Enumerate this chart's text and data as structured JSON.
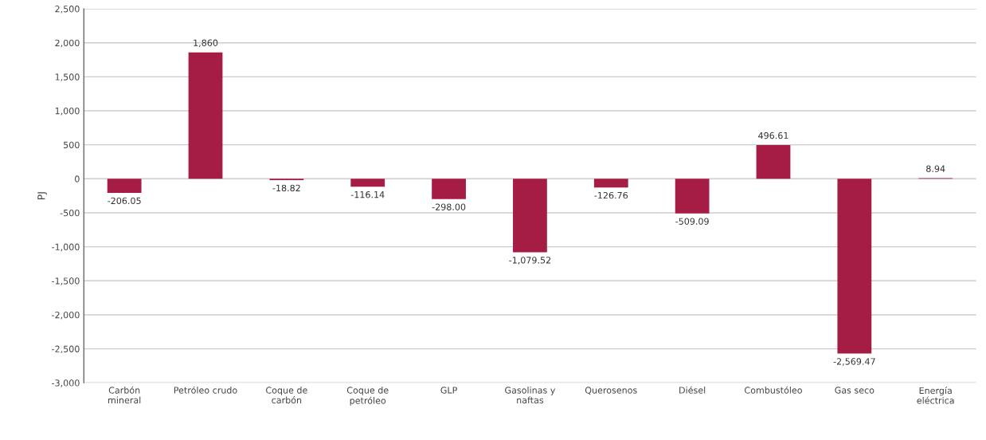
{
  "chart_data": {
    "type": "bar",
    "ylabel": "PJ",
    "categories": [
      "Carbón\nmineral",
      "Petróleo crudo",
      "Coque de\ncarbón",
      "Coque de\npetróleo",
      "GLP",
      "Gasolinas y\nnaftas",
      "Querosenos",
      "Diésel",
      "Combustóleo",
      "Gas seco",
      "Energía\neléctrica"
    ],
    "values": [
      -206.05,
      1860,
      -18.82,
      -116.14,
      -298.0,
      -1079.52,
      -126.76,
      -509.09,
      496.61,
      -2569.47,
      8.94
    ],
    "value_labels": [
      "-206.05",
      "1,860",
      "-18.82",
      "-116.14",
      "-298.00",
      "-1,079.52",
      "-126.76",
      "-509.09",
      "496.61",
      "-2,569.47",
      "8.94"
    ],
    "color": "#a51c45",
    "ylim": [
      -3000,
      2500
    ],
    "yticks": [
      {
        "value": -3000,
        "label": "-3,000"
      },
      {
        "value": -2500,
        "label": "-2,500"
      },
      {
        "value": -2000,
        "label": "-2,000"
      },
      {
        "value": -1500,
        "label": "-1,500"
      },
      {
        "value": -1000,
        "label": "-1,000"
      },
      {
        "value": -500,
        "label": "-500"
      },
      0,
      500,
      {
        "value": 1000,
        "label": "1,000"
      },
      {
        "value": 1500,
        "label": "1,500"
      },
      {
        "value": 2000,
        "label": "2,000"
      },
      {
        "value": 2500,
        "label": "2,500"
      }
    ],
    "grid": "y",
    "legend": false
  }
}
